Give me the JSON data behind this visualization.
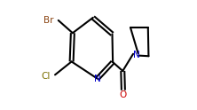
{
  "bg": "#ffffff",
  "bond_lw": 1.5,
  "bond_color": "#000000",
  "label_Br": "Br",
  "label_Cl": "Cl",
  "label_N_pyridine": "N",
  "label_N_azetidine": "N",
  "label_O": "O",
  "color_Br": "#8B4513",
  "color_Cl": "#7B7000",
  "color_N": "#0000cd",
  "color_O": "#cc0000",
  "color_C": "#000000",
  "figw": 2.22,
  "figh": 1.24,
  "dpi": 100
}
